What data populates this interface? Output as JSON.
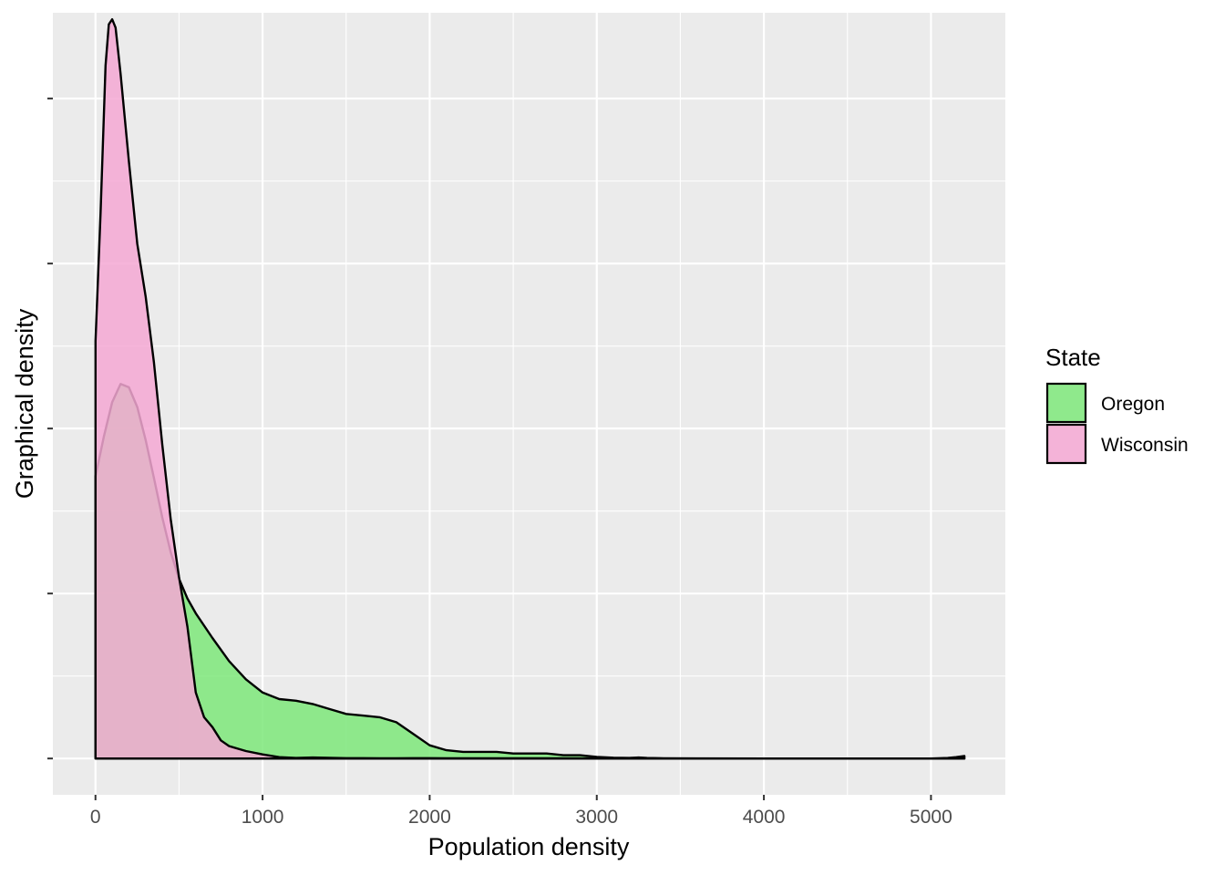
{
  "chart_data": {
    "type": "area",
    "title": "",
    "xlabel": "Population density",
    "ylabel": "Graphical density",
    "xlim": [
      -255,
      5445
    ],
    "ylim": [
      -0.00022,
      0.00452
    ],
    "x_ticks": [
      0,
      1000,
      2000,
      3000,
      4000,
      5000
    ],
    "x_tick_labels": [
      "0",
      "1000",
      "2000",
      "3000",
      "4000",
      "5000"
    ],
    "y_ticks": [
      0,
      0.001,
      0.002,
      0.003,
      0.004
    ],
    "y_tick_labels": [
      "",
      "",
      "",
      "",
      ""
    ],
    "grid": true,
    "legend": {
      "title": "State",
      "position": "right"
    },
    "series": [
      {
        "name": "Oregon",
        "color": "#7ee87a",
        "points": [
          [
            0,
            0.00171
          ],
          [
            50,
            0.00195
          ],
          [
            100,
            0.00216
          ],
          [
            150,
            0.00227
          ],
          [
            200,
            0.00225
          ],
          [
            250,
            0.00213
          ],
          [
            300,
            0.00193
          ],
          [
            350,
            0.0017
          ],
          [
            400,
            0.00146
          ],
          [
            450,
            0.00125
          ],
          [
            500,
            0.00109
          ],
          [
            550,
            0.00097
          ],
          [
            600,
            0.00088
          ],
          [
            700,
            0.00073
          ],
          [
            800,
            0.00059
          ],
          [
            900,
            0.00048
          ],
          [
            1000,
            0.0004
          ],
          [
            1100,
            0.00036
          ],
          [
            1200,
            0.00035
          ],
          [
            1300,
            0.00033
          ],
          [
            1400,
            0.0003
          ],
          [
            1500,
            0.00027
          ],
          [
            1600,
            0.00026
          ],
          [
            1700,
            0.00025
          ],
          [
            1800,
            0.00022
          ],
          [
            1900,
            0.00015
          ],
          [
            2000,
            8e-05
          ],
          [
            2100,
            5e-05
          ],
          [
            2200,
            4e-05
          ],
          [
            2300,
            4e-05
          ],
          [
            2400,
            4e-05
          ],
          [
            2500,
            3e-05
          ],
          [
            2600,
            3e-05
          ],
          [
            2700,
            3e-05
          ],
          [
            2800,
            2e-05
          ],
          [
            2900,
            2e-05
          ],
          [
            3000,
            1e-05
          ],
          [
            3100,
            5e-06
          ],
          [
            3200,
            3e-06
          ],
          [
            3300,
            1e-06
          ],
          [
            3400,
            0
          ],
          [
            4000,
            0
          ],
          [
            4500,
            0
          ],
          [
            5000,
            0
          ],
          [
            5100,
            0
          ],
          [
            5200,
            0
          ]
        ]
      },
      {
        "name": "Wisconsin",
        "color": "#f4a8d4",
        "points": [
          [
            0,
            0.00253
          ],
          [
            30,
            0.0033
          ],
          [
            60,
            0.0042
          ],
          [
            80,
            0.00445
          ],
          [
            100,
            0.00448
          ],
          [
            120,
            0.00443
          ],
          [
            150,
            0.00415
          ],
          [
            200,
            0.00362
          ],
          [
            250,
            0.00312
          ],
          [
            300,
            0.0028
          ],
          [
            350,
            0.0024
          ],
          [
            400,
            0.0019
          ],
          [
            450,
            0.00145
          ],
          [
            500,
            0.0011
          ],
          [
            550,
            0.0008
          ],
          [
            600,
            0.0004
          ],
          [
            650,
            0.00025
          ],
          [
            700,
            0.00019
          ],
          [
            750,
            0.00011
          ],
          [
            800,
            7.5e-05
          ],
          [
            900,
            4.5e-05
          ],
          [
            1000,
            2.5e-05
          ],
          [
            1100,
            8e-06
          ],
          [
            1200,
            3e-06
          ],
          [
            1300,
            6e-06
          ],
          [
            1400,
            4e-06
          ],
          [
            1500,
            2e-06
          ],
          [
            1600,
            2e-06
          ],
          [
            1700,
            1e-06
          ],
          [
            1800,
            1e-06
          ],
          [
            1900,
            2e-06
          ],
          [
            2000,
            2e-06
          ],
          [
            2100,
            1e-06
          ],
          [
            2200,
            1e-06
          ],
          [
            2300,
            1e-06
          ],
          [
            2400,
            1e-06
          ],
          [
            2500,
            1e-06
          ],
          [
            2600,
            1e-06
          ],
          [
            2700,
            1e-06
          ],
          [
            2800,
            1e-06
          ],
          [
            2900,
            1e-06
          ],
          [
            3000,
            1e-06
          ],
          [
            3200,
            3e-06
          ],
          [
            3250,
            6e-06
          ],
          [
            3300,
            3e-06
          ],
          [
            3400,
            1e-06
          ],
          [
            4000,
            0
          ],
          [
            4500,
            0
          ],
          [
            5000,
            0
          ],
          [
            5100,
            3e-06
          ],
          [
            5150,
            8e-06
          ],
          [
            5200,
            1.5e-05
          ]
        ]
      }
    ]
  }
}
